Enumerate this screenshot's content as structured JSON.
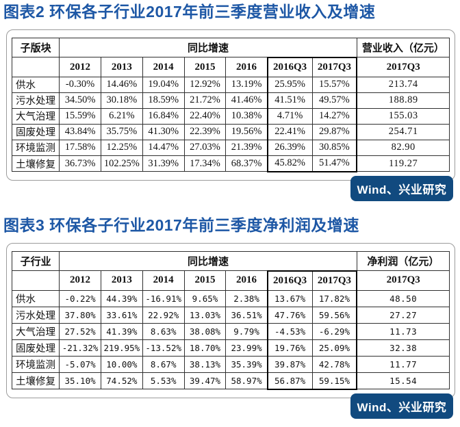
{
  "colors": {
    "title_blue": "#1d57a5",
    "badge_bg": "#114a7f",
    "badge_text": "#ffffff",
    "page_background": "#ffffff",
    "table_grid": "#2f2f2f",
    "highlight_box": "#000000"
  },
  "figure2": {
    "title": "图表2 环保各子行业2017年前三季度营业收入及增速",
    "source": "Wind、兴业研究",
    "table": {
      "first_col_header": "子版块",
      "group_header": "同比增速",
      "last_col_header": "营业收入（亿元）",
      "years": [
        "2012",
        "2013",
        "2014",
        "2015",
        "2016",
        "2016Q3",
        "2017Q3"
      ],
      "last_col_subheader": "2017Q3",
      "rows": [
        {
          "label": "供水",
          "values": [
            "-0.30%",
            "14.46%",
            "19.04%",
            "12.92%",
            "13.19%",
            "25.95%",
            "15.57%"
          ],
          "amount": "213.74"
        },
        {
          "label": "污水处理",
          "values": [
            "34.50%",
            "30.18%",
            "18.59%",
            "21.72%",
            "41.46%",
            "41.51%",
            "49.57%"
          ],
          "amount": "188.89"
        },
        {
          "label": "大气治理",
          "values": [
            "15.59%",
            "6.21%",
            "16.84%",
            "22.40%",
            "10.38%",
            "4.71%",
            "14.27%"
          ],
          "amount": "155.03"
        },
        {
          "label": "固废处理",
          "values": [
            "43.84%",
            "35.75%",
            "41.30%",
            "22.39%",
            "19.56%",
            "22.41%",
            "29.87%"
          ],
          "amount": "254.71"
        },
        {
          "label": "环境监测",
          "values": [
            "17.58%",
            "12.25%",
            "14.47%",
            "27.03%",
            "21.39%",
            "26.39%",
            "30.85%"
          ],
          "amount": "82.90"
        },
        {
          "label": "土壤修复",
          "values": [
            "36.73%",
            "102.25%",
            "31.39%",
            "17.34%",
            "68.37%",
            "45.82%",
            "51.47%"
          ],
          "amount": "119.27"
        }
      ]
    }
  },
  "figure3": {
    "title": "图表3 环保各子行业2017年前三季度净利润及增速",
    "source": "Wind、兴业研究",
    "table": {
      "first_col_header": "子行业",
      "group_header": "同比增速",
      "last_col_header": "净利润（亿元）",
      "years": [
        "2012",
        "2013",
        "2014",
        "2015",
        "2016",
        "2016Q3",
        "2017Q3"
      ],
      "last_col_subheader": "2017Q3",
      "rows": [
        {
          "label": "供水",
          "values": [
            "-0.22%",
            "44.39%",
            "-16.91%",
            "9.65%",
            "2.38%",
            "13.67%",
            "17.82%"
          ],
          "amount": "48.50"
        },
        {
          "label": "污水处理",
          "values": [
            "37.80%",
            "33.61%",
            "22.92%",
            "13.03%",
            "36.51%",
            "47.76%",
            "59.56%"
          ],
          "amount": "27.27"
        },
        {
          "label": "大气治理",
          "values": [
            "27.52%",
            "41.39%",
            "8.63%",
            "38.08%",
            "9.79%",
            "-4.53%",
            "-6.29%"
          ],
          "amount": "11.73"
        },
        {
          "label": "固废处理",
          "values": [
            "-21.32%",
            "219.95%",
            "-13.52%",
            "18.70%",
            "23.99%",
            "19.76%",
            "25.09%"
          ],
          "amount": "32.38"
        },
        {
          "label": "环境监测",
          "values": [
            "-5.07%",
            "10.00%",
            "8.67%",
            "38.13%",
            "35.39%",
            "39.87%",
            "42.78%"
          ],
          "amount": "11.77"
        },
        {
          "label": "土壤修复",
          "values": [
            "35.10%",
            "74.52%",
            "5.53%",
            "39.47%",
            "58.97%",
            "56.87%",
            "59.15%"
          ],
          "amount": "15.54"
        }
      ]
    }
  }
}
